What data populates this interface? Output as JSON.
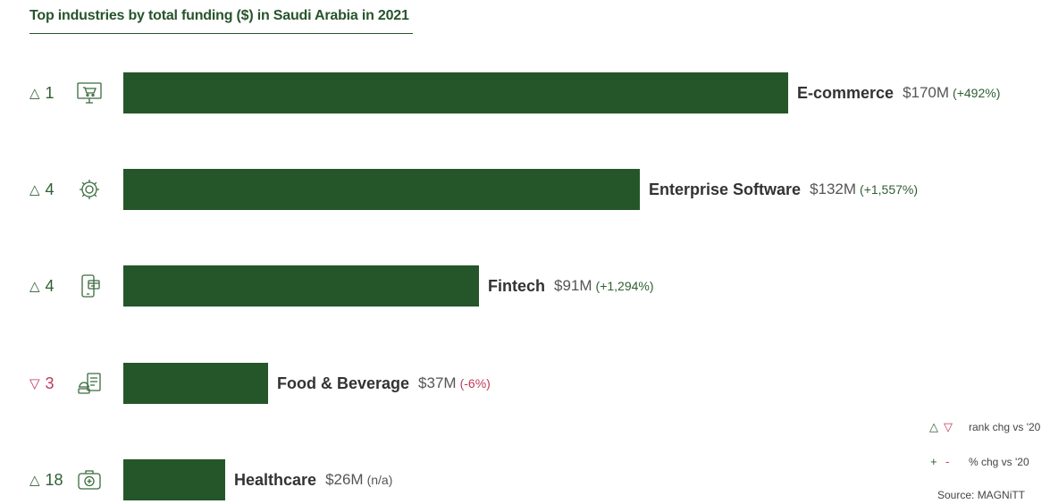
{
  "title": "Top industries by total funding ($) in Saudi Arabia in 2021",
  "colors": {
    "bar": "#25562a",
    "up": "#2f5f33",
    "down": "#c0395a",
    "text": "#333333"
  },
  "legend": {
    "rank_up_symbol": "△",
    "rank_down_symbol": "▽",
    "rank_text": "rank chg vs '20",
    "pct_plus_symbol": "+",
    "pct_minus_symbol": "-",
    "pct_text": "% chg vs '20"
  },
  "source": "Source: MAGNiTT",
  "chart_data": {
    "type": "bar",
    "orientation": "horizontal",
    "unit": "$M",
    "max_value": 170,
    "categories": [
      "E-commerce",
      "Enterprise Software",
      "Fintech",
      "Food & Beverage",
      "Healthcare"
    ],
    "values": [
      170,
      132,
      91,
      37,
      26
    ],
    "rows": [
      {
        "rank_dir": "up",
        "rank_symbol": "△",
        "rank_change": "1",
        "icon": "shopping-cart-monitor-icon",
        "name": "E-commerce",
        "value": 170,
        "value_label": "$170M",
        "pct_label": "(+492%)",
        "pct_dir": "pos"
      },
      {
        "rank_dir": "up",
        "rank_symbol": "△",
        "rank_change": "4",
        "icon": "gear-icon",
        "name": "Enterprise Software",
        "value": 132,
        "value_label": "$132M",
        "pct_label": "(+1,557%)",
        "pct_dir": "pos"
      },
      {
        "rank_dir": "up",
        "rank_symbol": "△",
        "rank_change": "4",
        "icon": "mobile-payment-icon",
        "name": "Fintech",
        "value": 91,
        "value_label": "$91M",
        "pct_label": "(+1,294%)",
        "pct_dir": "pos"
      },
      {
        "rank_dir": "down",
        "rank_symbol": "▽",
        "rank_change": "3",
        "icon": "food-delivery-icon",
        "name": "Food & Beverage",
        "value": 37,
        "value_label": "$37M",
        "pct_label": "(-6%)",
        "pct_dir": "neg"
      },
      {
        "rank_dir": "up",
        "rank_symbol": "△",
        "rank_change": "18",
        "icon": "medical-kit-icon",
        "name": "Healthcare",
        "value": 26,
        "value_label": "$26M",
        "pct_label": "(n/a)",
        "pct_dir": "na"
      }
    ]
  }
}
